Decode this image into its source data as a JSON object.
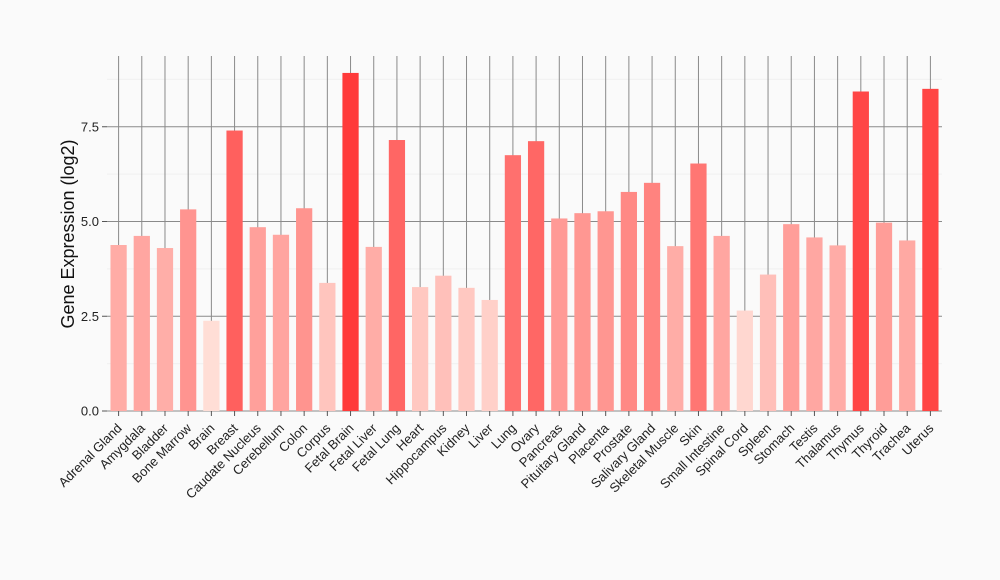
{
  "chart_data": {
    "type": "bar",
    "title": "",
    "xlabel": "",
    "ylabel": "Gene Expression (log2)",
    "ylim": [
      0,
      9.4
    ],
    "yticks": [
      0.0,
      2.5,
      5.0,
      7.5
    ],
    "ytick_labels": [
      "0.0",
      "2.5",
      "5.0",
      "7.5"
    ],
    "grid": true,
    "categories": [
      "Adrenal Gland",
      "Amygdala",
      "Bladder",
      "Bone Marrow",
      "Brain",
      "Breast",
      "Caudate Nucleus",
      "Cerebellum",
      "Colon",
      "Corpus",
      "Fetal Brain",
      "Fetal Liver",
      "Fetal Lung",
      "Heart",
      "Hippocampus",
      "Kidney",
      "Liver",
      "Lung",
      "Ovary",
      "Pancreas",
      "Pituitary Gland",
      "Placenta",
      "Prostate",
      "Salivary Gland",
      "Skeletal Muscle",
      "Skin",
      "Small Intestine",
      "Spinal Cord",
      "Spleen",
      "Stomach",
      "Testis",
      "Thalamus",
      "Thymus",
      "Thyroid",
      "Trachea",
      "Uterus"
    ],
    "values": [
      4.38,
      4.62,
      4.3,
      5.32,
      2.38,
      7.4,
      4.85,
      4.65,
      5.35,
      3.38,
      8.92,
      4.33,
      7.15,
      3.27,
      3.57,
      3.25,
      2.93,
      6.75,
      7.12,
      5.08,
      5.22,
      5.27,
      5.78,
      6.02,
      4.35,
      6.53,
      4.62,
      2.65,
      3.6,
      4.93,
      4.58,
      4.37,
      8.43,
      4.97,
      4.5,
      8.5
    ]
  }
}
